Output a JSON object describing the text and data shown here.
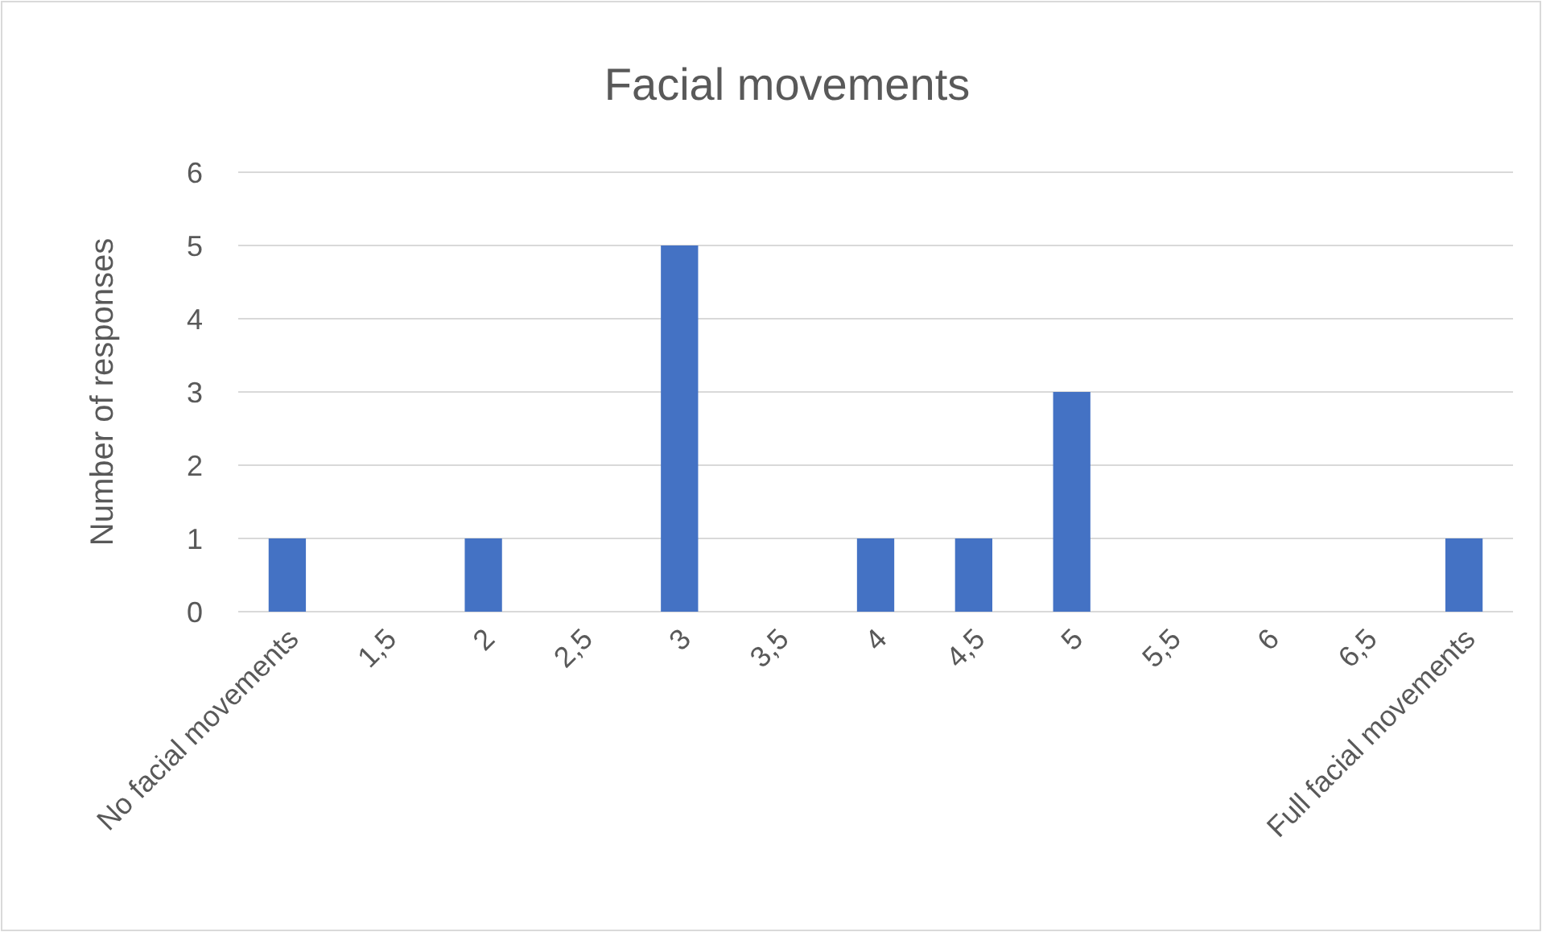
{
  "chart_data": {
    "type": "bar",
    "title": "Facial movements",
    "ylabel": "Number of responses",
    "categories": [
      "No facial movements",
      "1,5",
      "2",
      "2,5",
      "3",
      "3,5",
      "4",
      "4,5",
      "5",
      "5,5",
      "6",
      "6,5",
      "Full facial movements"
    ],
    "values": [
      1,
      0,
      1,
      0,
      5,
      0,
      1,
      1,
      3,
      0,
      0,
      0,
      1
    ],
    "color": "#4472c4",
    "ylim": [
      0,
      6
    ],
    "yticks": [
      0,
      1,
      2,
      3,
      4,
      5,
      6
    ],
    "grid": "y"
  }
}
